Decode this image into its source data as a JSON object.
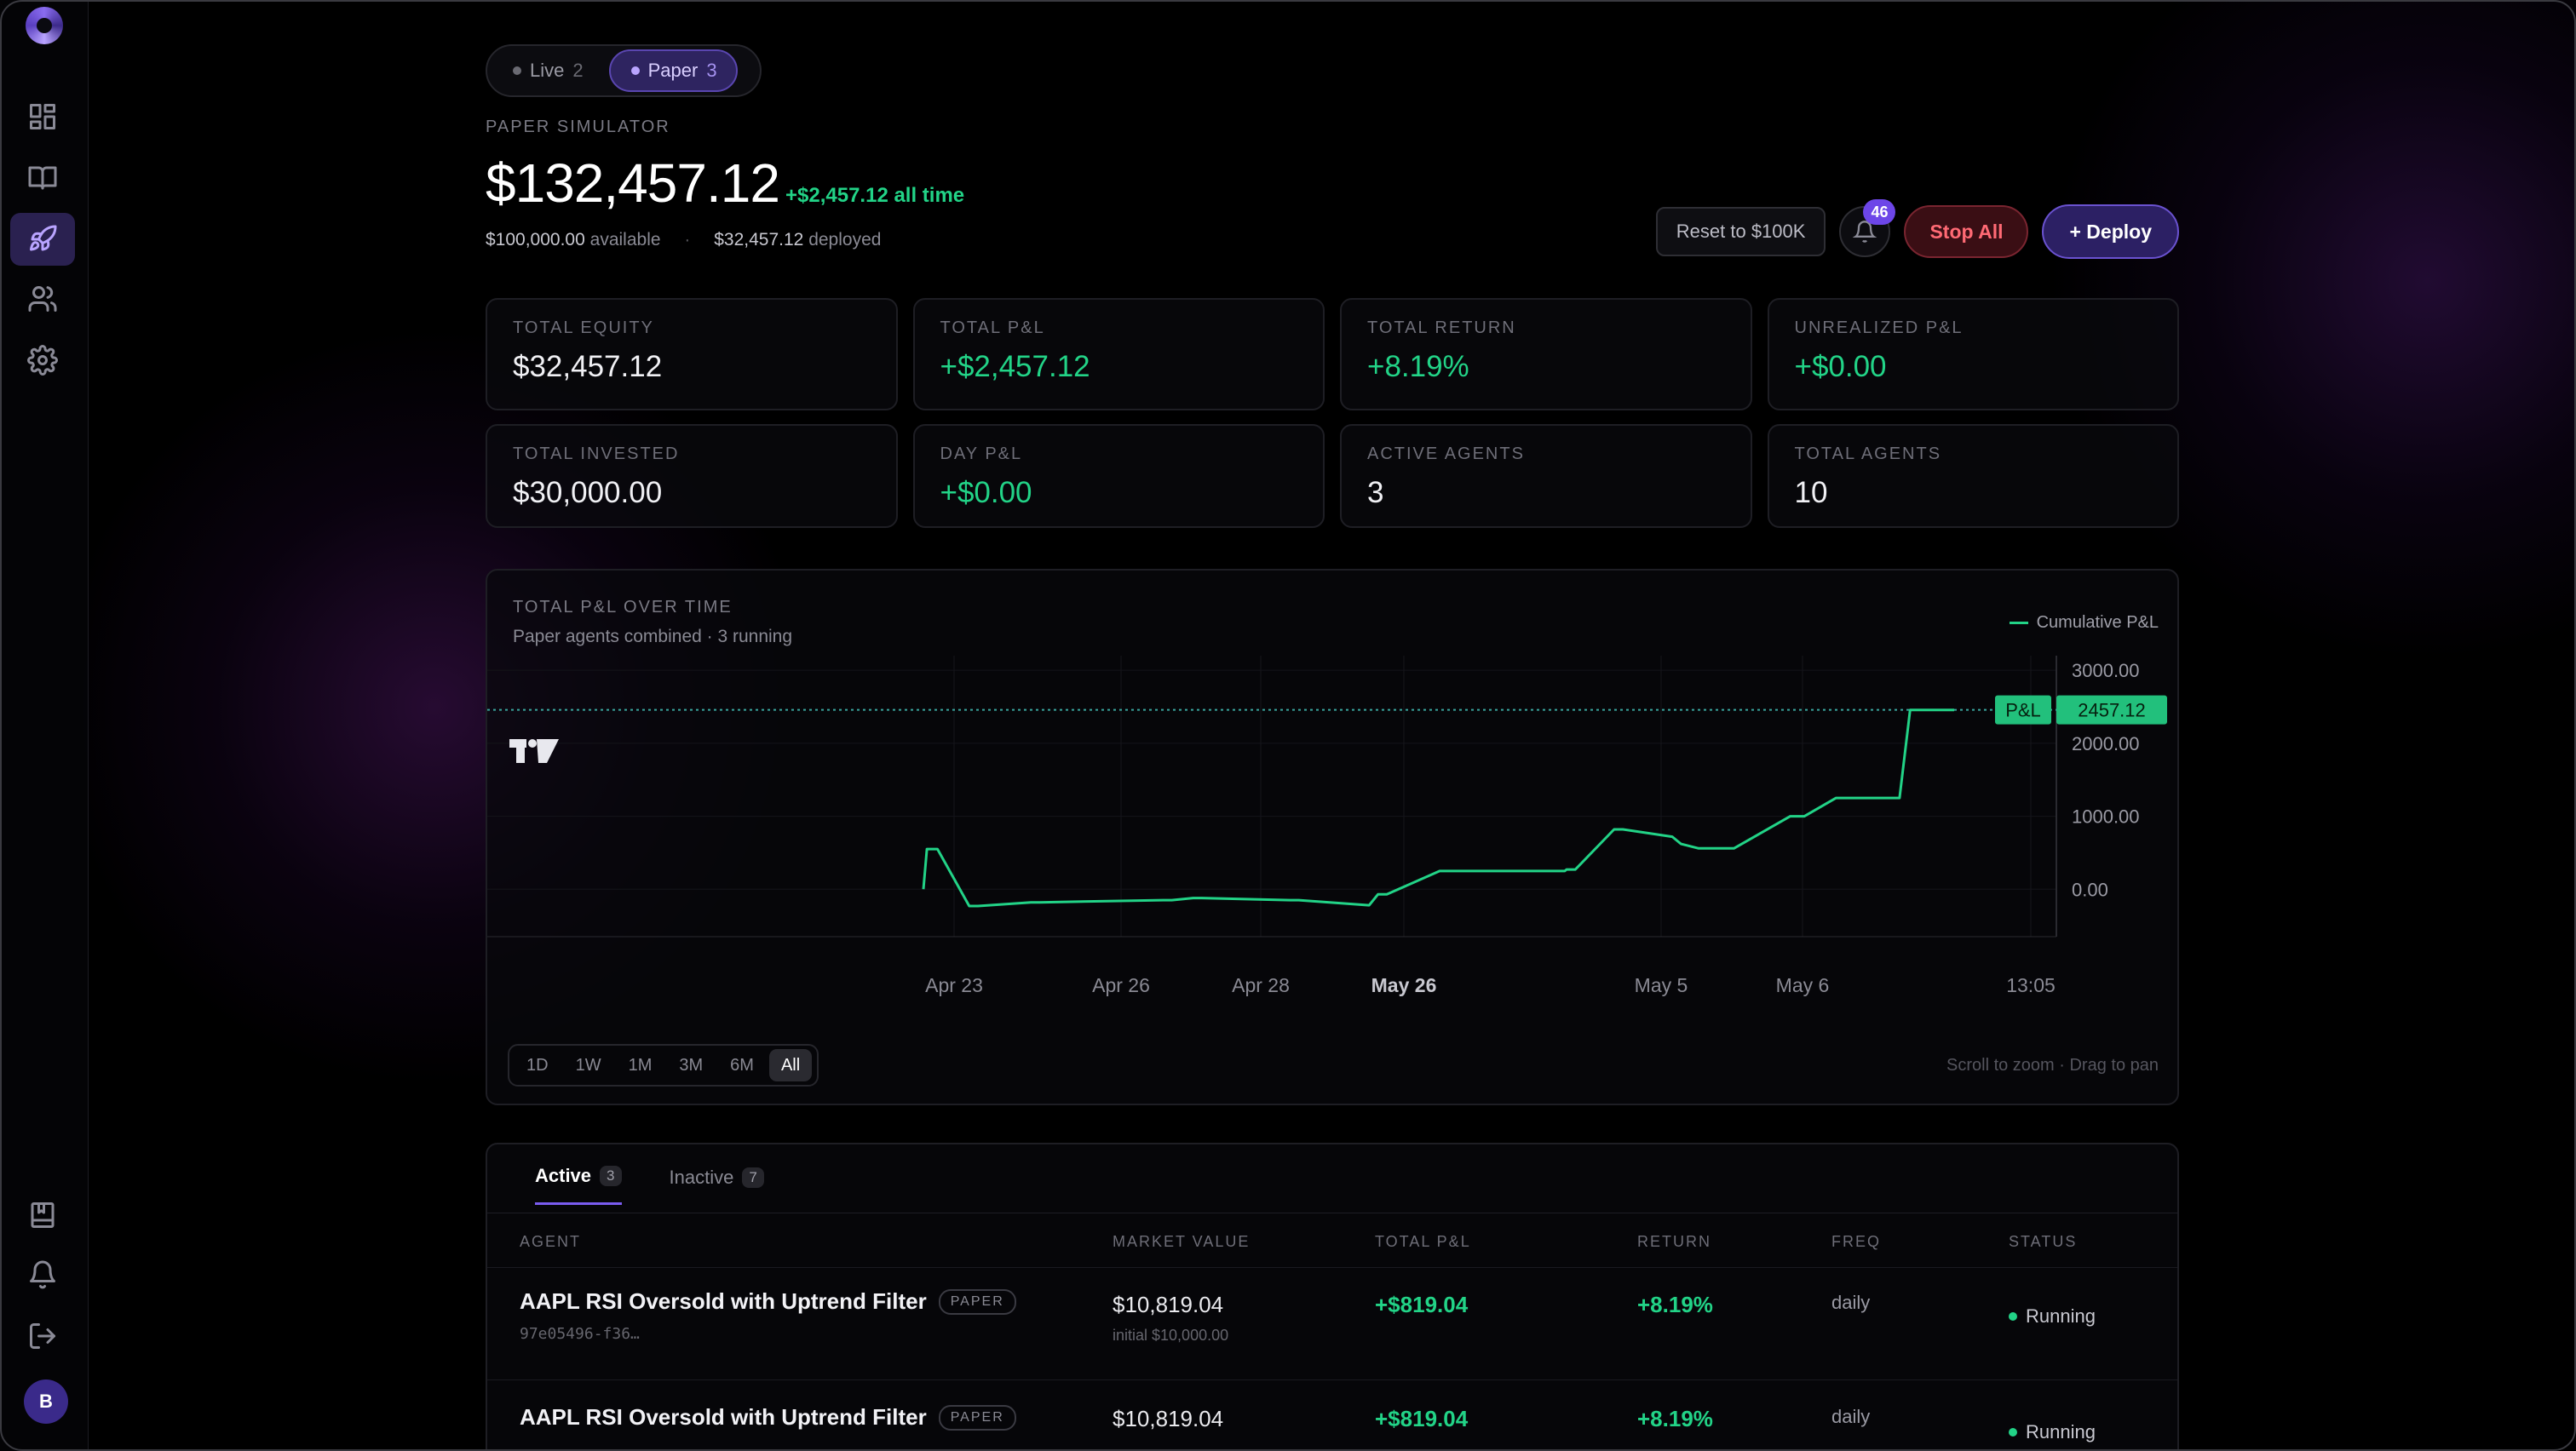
{
  "mode_toggle": {
    "live_label": "Live",
    "live_count": "2",
    "paper_label": "Paper",
    "paper_count": "3"
  },
  "header": {
    "section_label": "PAPER SIMULATOR",
    "balance": "$132,457.12",
    "all_time": "+$2,457.12 all time",
    "available_amount": "$100,000.00",
    "available_label": "available",
    "deployed_amount": "$32,457.12",
    "deployed_label": "deployed"
  },
  "actions": {
    "reset_label": "Reset to $100K",
    "notification_count": "46",
    "stop_label": "Stop All",
    "deploy_label": "+ Deploy"
  },
  "stats": [
    {
      "label": "TOTAL EQUITY",
      "value": "$32,457.12",
      "tone": "neutral"
    },
    {
      "label": "TOTAL P&L",
      "value": "+$2,457.12",
      "tone": "green"
    },
    {
      "label": "TOTAL RETURN",
      "value": "+8.19%",
      "tone": "green"
    },
    {
      "label": "UNREALIZED P&L",
      "value": "+$0.00",
      "tone": "green"
    },
    {
      "label": "TOTAL INVESTED",
      "value": "$30,000.00",
      "tone": "neutral"
    },
    {
      "label": "DAY P&L",
      "value": "+$0.00",
      "tone": "green"
    },
    {
      "label": "ACTIVE AGENTS",
      "value": "3",
      "tone": "neutral"
    },
    {
      "label": "TOTAL AGENTS",
      "value": "10",
      "tone": "neutral"
    }
  ],
  "chart_card": {
    "title": "TOTAL P&L OVER TIME",
    "subtitle": "Paper agents combined · 3 running",
    "legend": "Cumulative P&L",
    "price_tag_label": "P&L",
    "price_tag_value": "2457.12",
    "ranges": [
      "1D",
      "1W",
      "1M",
      "3M",
      "6M",
      "All"
    ],
    "active_range": "All",
    "hint": "Scroll to zoom · Drag to pan"
  },
  "chart_data": {
    "type": "line",
    "series": [
      {
        "name": "Cumulative P&L",
        "color": "#22d387",
        "values": [
          0,
          550,
          550,
          -230,
          -230,
          -180,
          -180,
          -150,
          -150,
          -120,
          -120,
          -150,
          -150,
          -220,
          -70,
          -70,
          250,
          250,
          250,
          250,
          270,
          270,
          820,
          820,
          720,
          620,
          560,
          560,
          560,
          1000,
          1000,
          1250,
          1250,
          1250,
          2457.12,
          2457.12
        ]
      }
    ],
    "x_tick_labels": [
      "Apr 23",
      "Apr 26",
      "Apr 28",
      "May 26",
      "May 5",
      "May 6",
      "13:05"
    ],
    "y_tick_labels": [
      "3000.00",
      "2000.00",
      "1000.00",
      "0.00"
    ],
    "ylim": [
      -650,
      3200
    ],
    "last_value": 2457.12,
    "grid": true,
    "legend_position": "top-right"
  },
  "table": {
    "tabs": [
      {
        "label": "Active",
        "count": "3"
      },
      {
        "label": "Inactive",
        "count": "7"
      }
    ],
    "headers": [
      "AGENT",
      "MARKET VALUE",
      "TOTAL P&L",
      "RETURN",
      "FREQ",
      "STATUS"
    ],
    "rows": [
      {
        "name": "AAPL RSI Oversold with Uptrend Filter",
        "badge": "PAPER",
        "id": "97e05496-f36…",
        "market_value": "$10,819.04",
        "initial": "initial $10,000.00",
        "pnl": "+$819.04",
        "return": "+8.19%",
        "freq": "daily",
        "status": "Running"
      },
      {
        "name": "AAPL RSI Oversold with Uptrend Filter",
        "badge": "PAPER",
        "id": "",
        "market_value": "$10,819.04",
        "initial": "",
        "pnl": "+$819.04",
        "return": "+8.19%",
        "freq": "daily",
        "status": "Running"
      }
    ]
  },
  "sidebar": {
    "avatar_initial": "B"
  }
}
